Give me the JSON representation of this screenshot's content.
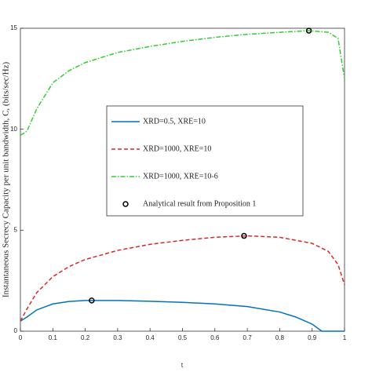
{
  "chart_data": {
    "type": "line",
    "x_label": "t",
    "y_label": "Instantaneous Secrecy Capacity per unit bandwidth, C, (bits/sec/Hz)",
    "xlim": [
      0,
      1
    ],
    "ylim": [
      0,
      15
    ],
    "xticks": [
      0,
      0.1,
      0.2,
      0.3,
      0.4,
      0.5,
      0.6,
      0.7,
      0.8,
      0.9,
      1
    ],
    "yticks": [
      0,
      5,
      10,
      15
    ],
    "series": [
      {
        "name": "XRD=0.5, XRE=10",
        "color": "#0072bd",
        "style": "solid",
        "x": [
          0,
          0.02,
          0.05,
          0.1,
          0.15,
          0.2,
          0.3,
          0.4,
          0.5,
          0.6,
          0.7,
          0.8,
          0.85,
          0.9,
          0.93,
          0.95,
          1
        ],
        "values": [
          0.5,
          0.7,
          1.05,
          1.35,
          1.47,
          1.52,
          1.52,
          1.48,
          1.43,
          1.35,
          1.22,
          0.95,
          0.7,
          0.35,
          0,
          0,
          0
        ]
      },
      {
        "name": "XRD=1000, XRE=10",
        "color": "#d62728",
        "style": "dashed",
        "x": [
          0,
          0.02,
          0.05,
          0.1,
          0.15,
          0.2,
          0.3,
          0.4,
          0.5,
          0.6,
          0.7,
          0.8,
          0.9,
          0.95,
          0.98,
          1
        ],
        "values": [
          0.5,
          1.1,
          1.9,
          2.7,
          3.2,
          3.55,
          4.0,
          4.3,
          4.5,
          4.65,
          4.72,
          4.65,
          4.35,
          3.95,
          3.3,
          2.3
        ]
      },
      {
        "name": "XRD=1000, XRE=10-6",
        "color": "#33cc33",
        "style": "dashdot",
        "x": [
          0,
          0.02,
          0.05,
          0.1,
          0.15,
          0.2,
          0.3,
          0.4,
          0.5,
          0.6,
          0.7,
          0.8,
          0.89,
          0.95,
          0.98,
          1
        ],
        "values": [
          9.7,
          9.9,
          11.0,
          12.3,
          12.9,
          13.3,
          13.8,
          14.1,
          14.35,
          14.55,
          14.7,
          14.8,
          14.88,
          14.8,
          14.5,
          12.5
        ]
      },
      {
        "name": "Analytical result  from Proposition 1",
        "color": "#000000",
        "style": "marker",
        "x": [
          0.22,
          0.69,
          0.89
        ],
        "values": [
          1.52,
          4.72,
          14.88
        ]
      }
    ]
  }
}
